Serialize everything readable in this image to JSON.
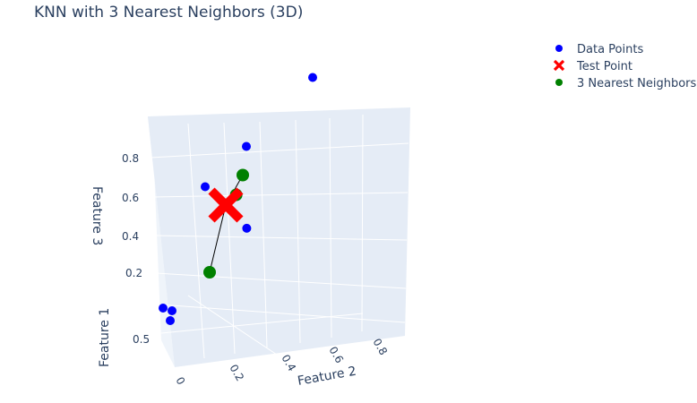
{
  "chart_data": {
    "type": "scatter",
    "title": "KNN with 3 Nearest Neighbors (3D)",
    "axes": {
      "x": {
        "title": "Feature 1",
        "ticks": [
          "0.5"
        ]
      },
      "y": {
        "title": "Feature 2",
        "ticks": [
          "0",
          "0.2",
          "0.4",
          "0.6",
          "0.8"
        ]
      },
      "z": {
        "title": "Feature 3",
        "ticks": [
          "0.2",
          "0.4",
          "0.6",
          "0.8"
        ]
      }
    },
    "legend_placement": "top-right",
    "series": [
      {
        "name": "Data Points",
        "color": "#0000ff",
        "marker": "circle",
        "points": [
          {
            "x": 0.1,
            "y": 0.0,
            "z": 0.95
          },
          {
            "x": 0.3,
            "y": 0.85,
            "z": 0.75
          },
          {
            "x": 0.55,
            "y": 0.7,
            "z": 0.6
          },
          {
            "x": 0.45,
            "y": 0.2,
            "z": 0.38
          },
          {
            "x": 0.9,
            "y": 0.2,
            "z": 0.1
          },
          {
            "x": 0.85,
            "y": 0.3,
            "z": 0.05
          },
          {
            "x": 0.8,
            "y": 0.5,
            "z": 0.1
          }
        ]
      },
      {
        "name": "Test Point",
        "color": "#ff0000",
        "marker": "x",
        "points": [
          {
            "x": 0.5,
            "y": 0.45,
            "z": 0.5
          }
        ]
      },
      {
        "name": "3 Nearest Neighbors",
        "color": "#008000",
        "marker": "circle",
        "points": [
          {
            "x": 0.45,
            "y": 0.2,
            "z": 0.6
          },
          {
            "x": 0.5,
            "y": 0.15,
            "z": 0.52
          },
          {
            "x": 0.55,
            "y": 0.75,
            "z": 0.25
          }
        ]
      }
    ]
  }
}
